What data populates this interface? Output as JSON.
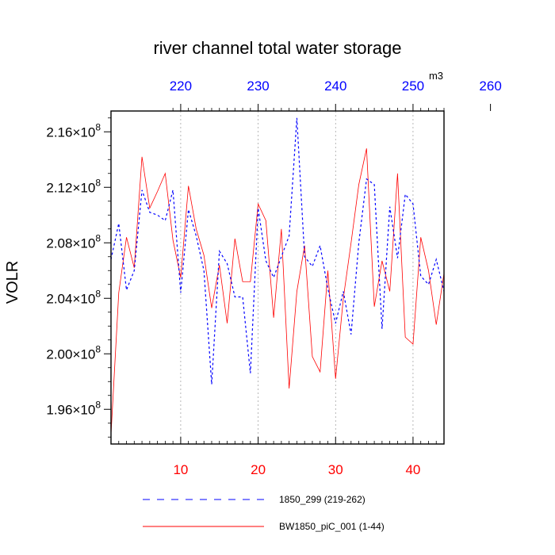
{
  "chart_data": {
    "type": "line",
    "title": "river channel total water storage",
    "ylabel": "VOLR",
    "units": "m3",
    "colors": {
      "bottom_ticks": "#ff0000",
      "top_ticks": "#0000ff",
      "series_a": "#0000ff",
      "series_b": "#ff0000",
      "axis": "#000000",
      "grid": "#999999"
    },
    "x_bottom": {
      "range": [
        1,
        44
      ],
      "ticks": [
        10,
        20,
        30,
        40
      ],
      "tick_labels": [
        "10",
        "20",
        "30",
        "40"
      ]
    },
    "x_top": {
      "ticks": [
        220,
        230,
        240,
        250,
        260
      ],
      "tick_labels": [
        "220",
        "230",
        "240",
        "250",
        "260"
      ]
    },
    "y": {
      "range": [
        1.935,
        2.175
      ],
      "ticks": [
        1.96,
        2.0,
        2.04,
        2.08,
        2.12,
        2.16
      ],
      "tick_mantissas": [
        "1.96",
        "2.00",
        "2.04",
        "2.08",
        "2.12",
        "2.16"
      ],
      "tick_exponent_text": "×10",
      "tick_power": "8"
    },
    "x": [
      1,
      2,
      3,
      4,
      5,
      6,
      7,
      8,
      9,
      10,
      11,
      12,
      13,
      14,
      15,
      16,
      17,
      18,
      19,
      20,
      21,
      22,
      23,
      24,
      25,
      26,
      27,
      28,
      29,
      30,
      31,
      32,
      33,
      34,
      35,
      36,
      37,
      38,
      39,
      40,
      41,
      42,
      43,
      44
    ],
    "series": [
      {
        "name": "1850_299 (219-262)",
        "style": "dashed",
        "values": [
          2.068,
          2.094,
          2.046,
          2.06,
          2.118,
          2.102,
          2.1,
          2.096,
          2.118,
          2.044,
          2.104,
          2.085,
          2.06,
          1.978,
          2.074,
          2.065,
          2.041,
          2.041,
          1.986,
          2.105,
          2.067,
          2.055,
          2.07,
          2.085,
          2.17,
          2.07,
          2.063,
          2.078,
          2.047,
          2.022,
          2.045,
          2.014,
          2.08,
          2.126,
          2.122,
          2.018,
          2.106,
          2.069,
          2.115,
          2.108,
          2.056,
          2.05,
          2.068,
          2.045
        ]
      },
      {
        "name": "BW1850_piC_001 (1-44)",
        "style": "solid",
        "values": [
          1.942,
          2.044,
          2.084,
          2.062,
          2.142,
          2.105,
          2.117,
          2.13,
          2.082,
          2.055,
          2.121,
          2.09,
          2.071,
          2.033,
          2.064,
          2.022,
          2.083,
          2.052,
          2.052,
          2.108,
          2.096,
          2.026,
          2.09,
          1.975,
          2.045,
          2.078,
          1.998,
          1.987,
          2.06,
          1.982,
          2.04,
          2.08,
          2.122,
          2.148,
          2.034,
          2.067,
          2.045,
          2.13,
          2.012,
          2.007,
          2.084,
          2.06,
          2.021,
          2.058
        ]
      }
    ],
    "legend": [
      "1850_299 (219-262)",
      "BW1850_piC_001 (1-44)"
    ]
  }
}
